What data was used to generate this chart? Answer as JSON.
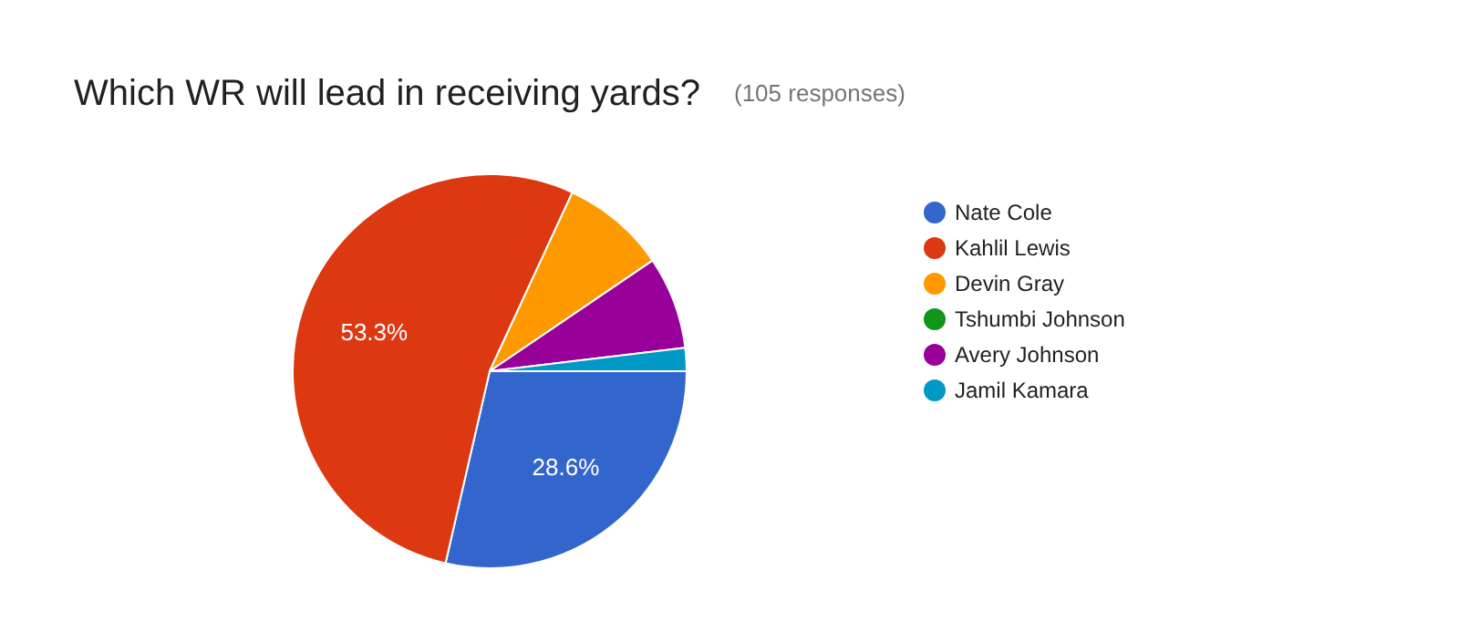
{
  "chart_data": {
    "type": "pie",
    "title": "Which WR will lead in receiving yards?",
    "subtitle": "(105 responses)",
    "categories": [
      "Nate Cole",
      "Kahlil Lewis",
      "Devin Gray",
      "Tshumbi Johnson",
      "Avery Johnson",
      "Jamil Kamara"
    ],
    "values": [
      28.6,
      53.3,
      8.6,
      0,
      7.6,
      1.9
    ],
    "colors": [
      "#3366cc",
      "#dc3912",
      "#ff9900",
      "#109618",
      "#990099",
      "#0099c6"
    ],
    "value_labels": [
      "28.6%",
      "53.3%",
      null,
      null,
      null,
      null
    ],
    "legend": "right"
  }
}
